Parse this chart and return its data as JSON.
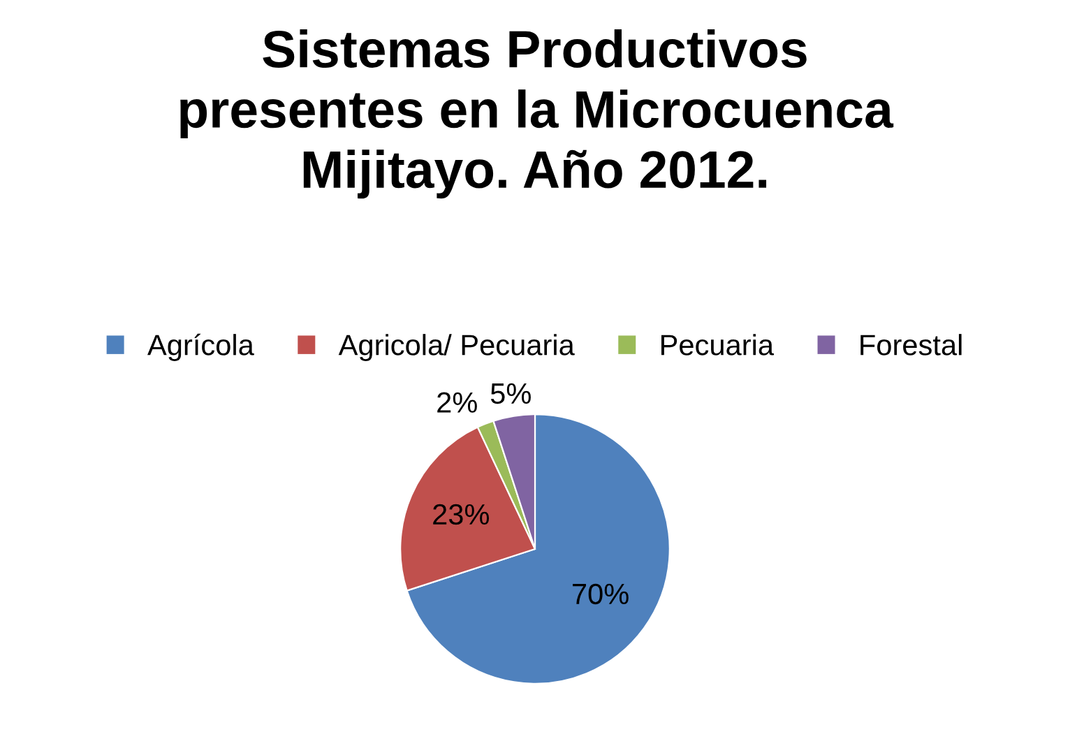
{
  "chart_data": {
    "type": "pie",
    "title": "Sistemas Productivos\npresentes en la Microcuenca\nMijitayo. Año 2012.",
    "categories": [
      "Agrícola",
      "Agricola/ Pecuaria",
      "Pecuaria",
      "Forestal"
    ],
    "values": [
      70,
      23,
      2,
      5
    ],
    "colors": [
      "#4f81bd",
      "#c0504d",
      "#9bbb59",
      "#8064a2"
    ],
    "value_labels": [
      "70%",
      "23%",
      "2%",
      "5%"
    ],
    "legend": "top"
  }
}
